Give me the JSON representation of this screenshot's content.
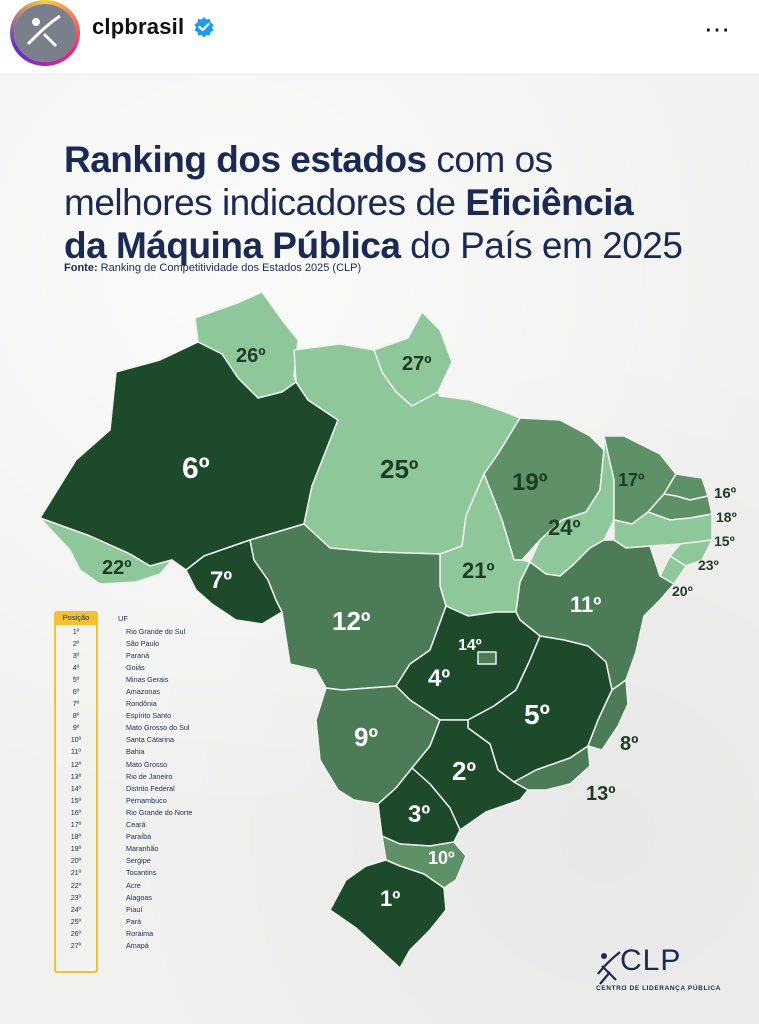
{
  "post": {
    "username": "clpbrasil",
    "more_icon": "⋯"
  },
  "poster": {
    "title_parts": [
      {
        "text": "Ranking dos estados",
        "bold": true
      },
      {
        "text": " com os",
        "bold": false
      },
      {
        "text": "melhores indicadores de ",
        "bold": false
      },
      {
        "text": "Eficiência",
        "bold": true
      },
      {
        "text": "da Máquina Pública",
        "bold": true
      },
      {
        "text": " do País em 2025",
        "bold": false
      }
    ],
    "source_label": "Fonte:",
    "source_text": "Ranking de Competitividade dos Estados 2025 (CLP)",
    "legend_header_pos": "Posição",
    "legend_header_uf": "UF",
    "legend": [
      {
        "pos": "1º",
        "uf": "Rio Grande do Sul"
      },
      {
        "pos": "2º",
        "uf": "São Paulo"
      },
      {
        "pos": "3º",
        "uf": "Paraná"
      },
      {
        "pos": "4º",
        "uf": "Goiás"
      },
      {
        "pos": "5º",
        "uf": "Minas Gerais"
      },
      {
        "pos": "6º",
        "uf": "Amazonas"
      },
      {
        "pos": "7º",
        "uf": "Rondônia"
      },
      {
        "pos": "8º",
        "uf": "Espírito Santo"
      },
      {
        "pos": "9º",
        "uf": "Mato Grosso do Sul"
      },
      {
        "pos": "10º",
        "uf": "Santa Catarina"
      },
      {
        "pos": "11º",
        "uf": "Bahia"
      },
      {
        "pos": "12º",
        "uf": "Mato Grosso"
      },
      {
        "pos": "13º",
        "uf": "Rio de Janeiro"
      },
      {
        "pos": "14º",
        "uf": "Distrito Federal"
      },
      {
        "pos": "15º",
        "uf": "Pernambuco"
      },
      {
        "pos": "16º",
        "uf": "Rio Grande do Norte"
      },
      {
        "pos": "17º",
        "uf": "Ceará"
      },
      {
        "pos": "18º",
        "uf": "Paraíba"
      },
      {
        "pos": "19º",
        "uf": "Maranhão"
      },
      {
        "pos": "20º",
        "uf": "Sergipe"
      },
      {
        "pos": "21º",
        "uf": "Tocantins"
      },
      {
        "pos": "22º",
        "uf": "Acre"
      },
      {
        "pos": "23º",
        "uf": "Alagoas"
      },
      {
        "pos": "24º",
        "uf": "Piauí"
      },
      {
        "pos": "25º",
        "uf": "Pará"
      },
      {
        "pos": "26º",
        "uf": "Roraima"
      },
      {
        "pos": "27º",
        "uf": "Amapá"
      }
    ],
    "map_labels": {
      "RR": "26º",
      "AP": "27º",
      "AM": "6º",
      "PA": "25º",
      "MA": "19º",
      "CE": "17º",
      "RN": "16º",
      "PB": "18º",
      "PE": "15º",
      "AL": "23º",
      "SE": "20º",
      "PI": "24º",
      "TO": "21º",
      "AC": "22º",
      "RO": "7º",
      "MT": "12º",
      "BA": "11º",
      "DF": "14º",
      "GO": "4º",
      "MG": "5º",
      "ES": "8º",
      "MS": "9º",
      "SP": "2º",
      "RJ": "13º",
      "PR": "3º",
      "SC": "10º",
      "RS": "1º"
    },
    "colors": {
      "title": "#1b2a52",
      "top_tier": "#1e4a2c",
      "mid_tier": "#4c7b57",
      "upper_mid_tier": "#5e9168",
      "low_tier": "#8ec79a",
      "legend_accent": "#f1c232"
    },
    "logo_text": "CLP",
    "logo_subtitle": "CENTRO DE LIDERANÇA PÚBLICA"
  }
}
